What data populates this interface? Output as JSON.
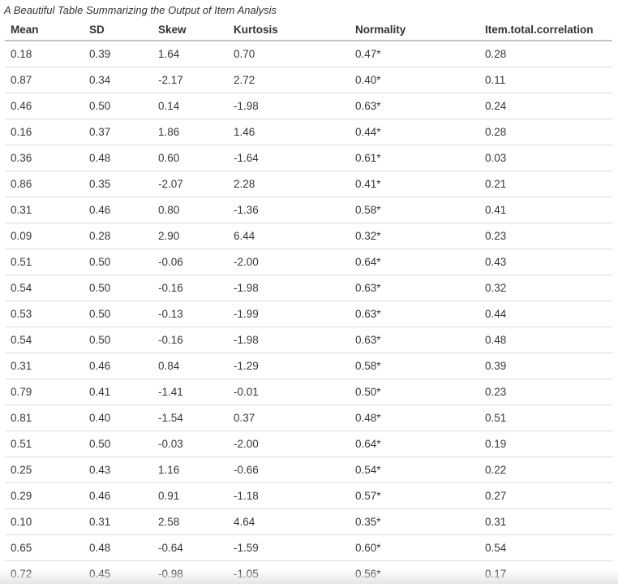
{
  "chart_data": {
    "type": "table",
    "title": "A Beautiful Table Summarizing the Output of Item Analysis",
    "columns": [
      "Mean",
      "SD",
      "Skew",
      "Kurtosis",
      "Normality",
      "Item.total.correlation"
    ],
    "rows": [
      [
        "0.18",
        "0.39",
        "1.64",
        "0.70",
        "0.47*",
        "0.28"
      ],
      [
        "0.87",
        "0.34",
        "-2.17",
        "2.72",
        "0.40*",
        "0.11"
      ],
      [
        "0.46",
        "0.50",
        "0.14",
        "-1.98",
        "0.63*",
        "0.24"
      ],
      [
        "0.16",
        "0.37",
        "1.86",
        "1.46",
        "0.44*",
        "0.28"
      ],
      [
        "0.36",
        "0.48",
        "0.60",
        "-1.64",
        "0.61*",
        "0.03"
      ],
      [
        "0.86",
        "0.35",
        "-2.07",
        "2.28",
        "0.41*",
        "0.21"
      ],
      [
        "0.31",
        "0.46",
        "0.80",
        "-1.36",
        "0.58*",
        "0.41"
      ],
      [
        "0.09",
        "0.28",
        "2.90",
        "6.44",
        "0.32*",
        "0.23"
      ],
      [
        "0.51",
        "0.50",
        "-0.06",
        "-2.00",
        "0.64*",
        "0.43"
      ],
      [
        "0.54",
        "0.50",
        "-0.16",
        "-1.98",
        "0.63*",
        "0.32"
      ],
      [
        "0.53",
        "0.50",
        "-0.13",
        "-1.99",
        "0.63*",
        "0.44"
      ],
      [
        "0.54",
        "0.50",
        "-0.16",
        "-1.98",
        "0.63*",
        "0.48"
      ],
      [
        "0.31",
        "0.46",
        "0.84",
        "-1.29",
        "0.58*",
        "0.39"
      ],
      [
        "0.79",
        "0.41",
        "-1.41",
        "-0.01",
        "0.50*",
        "0.23"
      ],
      [
        "0.81",
        "0.40",
        "-1.54",
        "0.37",
        "0.48*",
        "0.51"
      ],
      [
        "0.51",
        "0.50",
        "-0.03",
        "-2.00",
        "0.64*",
        "0.19"
      ],
      [
        "0.25",
        "0.43",
        "1.16",
        "-0.66",
        "0.54*",
        "0.22"
      ],
      [
        "0.29",
        "0.46",
        "0.91",
        "-1.18",
        "0.57*",
        "0.27"
      ],
      [
        "0.10",
        "0.31",
        "2.58",
        "4.64",
        "0.35*",
        "0.31"
      ],
      [
        "0.65",
        "0.48",
        "-0.64",
        "-1.59",
        "0.60*",
        "0.54"
      ],
      [
        "0.72",
        "0.45",
        "-0.98",
        "-1.05",
        "0.56*",
        "0.17"
      ]
    ]
  },
  "colors": {
    "text": "#333333",
    "header_border": "#c3c3c3",
    "row_border": "#dcdcdc",
    "background": "#ffffff",
    "bottom_fade_edge": "#e6e6e6"
  }
}
